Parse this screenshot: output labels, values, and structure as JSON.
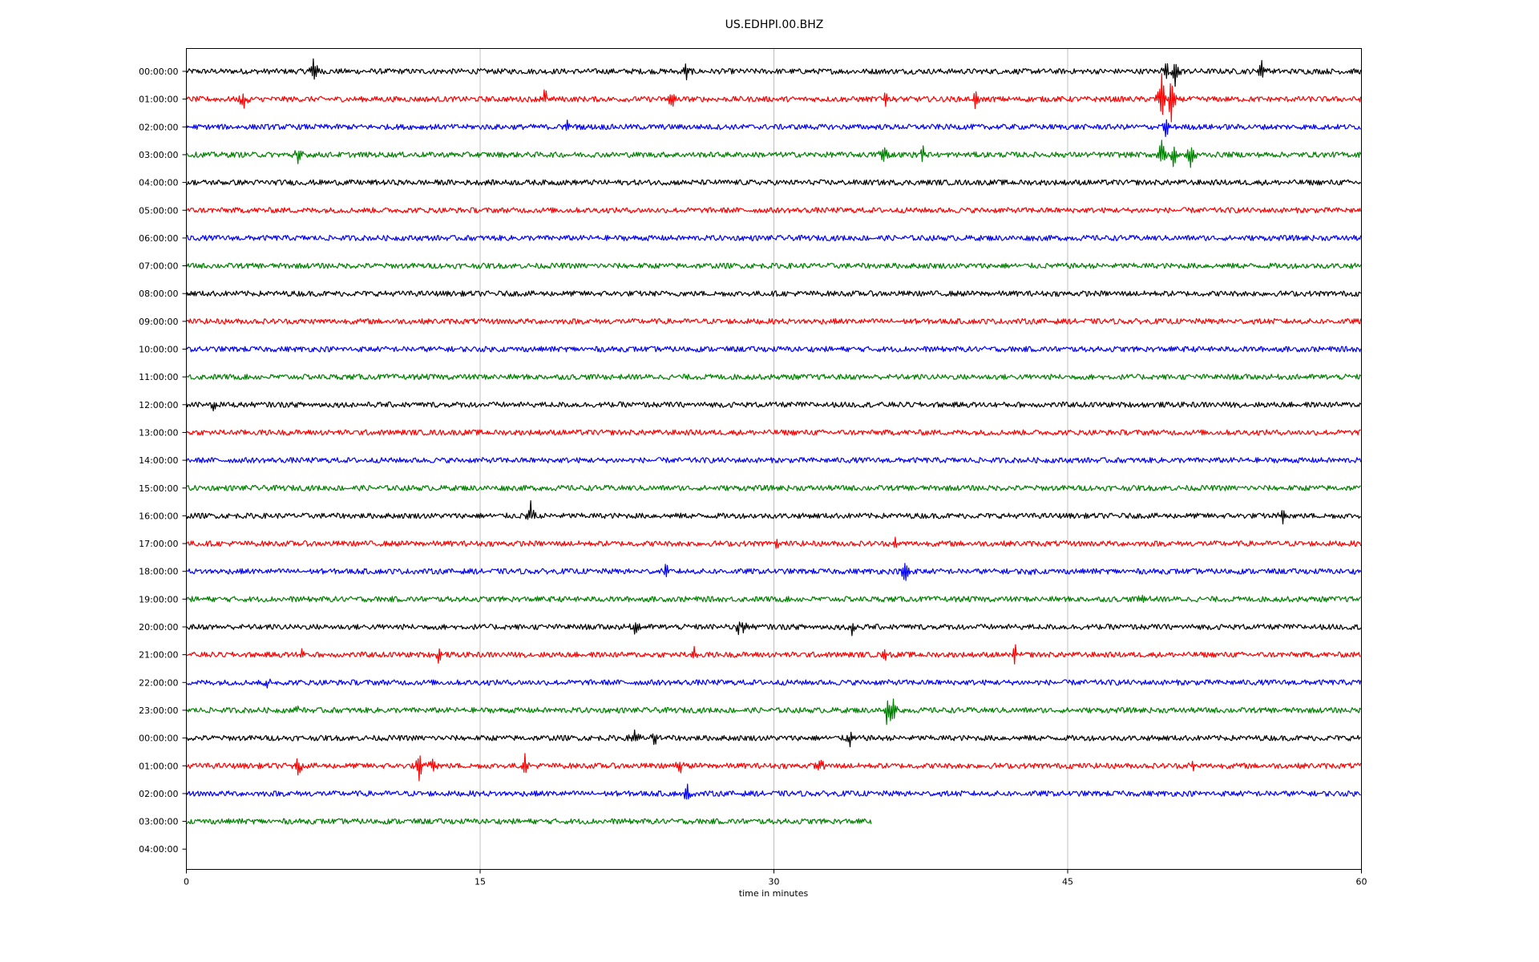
{
  "chart_data": {
    "type": "line",
    "title": "US.EDHPI.00.BHZ",
    "xlabel": "time in minutes",
    "ylabel": "",
    "xlim": [
      0,
      60
    ],
    "x_ticks": [
      0,
      15,
      30,
      45,
      60
    ],
    "x_tick_labels": [
      "0",
      "15",
      "30",
      "45",
      "60"
    ],
    "grid": "vertical lines at x tick positions",
    "color_cycle": [
      "#000000",
      "#ff0000",
      "#0000ff",
      "#008000"
    ],
    "row_labels": [
      "00:00:00",
      "01:00:00",
      "02:00:00",
      "03:00:00",
      "04:00:00",
      "05:00:00",
      "06:00:00",
      "07:00:00",
      "08:00:00",
      "09:00:00",
      "10:00:00",
      "11:00:00",
      "12:00:00",
      "13:00:00",
      "14:00:00",
      "15:00:00",
      "16:00:00",
      "17:00:00",
      "18:00:00",
      "19:00:00",
      "20:00:00",
      "21:00:00",
      "22:00:00",
      "23:00:00",
      "00:00:00",
      "01:00:00",
      "02:00:00",
      "03:00:00",
      "04:00:00"
    ],
    "trace_end_minutes": [
      60,
      60,
      60,
      60,
      60,
      60,
      60,
      60,
      60,
      60,
      60,
      60,
      60,
      60,
      60,
      60,
      60,
      60,
      60,
      60,
      60,
      60,
      60,
      60,
      60,
      60,
      60,
      35,
      0
    ],
    "noise_amplitude": 0.12,
    "spikes": [
      {
        "row": 0,
        "minute": 6.5,
        "amp": 0.8
      },
      {
        "row": 0,
        "minute": 25.5,
        "amp": -0.5
      },
      {
        "row": 0,
        "minute": 50.0,
        "amp": 0.6
      },
      {
        "row": 0,
        "minute": 50.5,
        "amp": -0.9
      },
      {
        "row": 0,
        "minute": 54.9,
        "amp": 0.75
      },
      {
        "row": 1,
        "minute": 2.9,
        "amp": -0.5
      },
      {
        "row": 1,
        "minute": 18.3,
        "amp": 0.5
      },
      {
        "row": 1,
        "minute": 24.8,
        "amp": -0.5
      },
      {
        "row": 1,
        "minute": 35.7,
        "amp": 0.45
      },
      {
        "row": 1,
        "minute": 40.3,
        "amp": -0.6
      },
      {
        "row": 1,
        "minute": 49.8,
        "amp": 1.8
      },
      {
        "row": 1,
        "minute": 50.3,
        "amp": -1.5
      },
      {
        "row": 2,
        "minute": 19.5,
        "amp": 0.35
      },
      {
        "row": 2,
        "minute": 50.0,
        "amp": -0.6
      },
      {
        "row": 3,
        "minute": 5.7,
        "amp": -0.5
      },
      {
        "row": 3,
        "minute": 35.6,
        "amp": 0.6
      },
      {
        "row": 3,
        "minute": 37.6,
        "amp": 0.4
      },
      {
        "row": 3,
        "minute": 49.8,
        "amp": 0.9
      },
      {
        "row": 3,
        "minute": 50.4,
        "amp": -0.8
      },
      {
        "row": 3,
        "minute": 51.3,
        "amp": -0.8
      },
      {
        "row": 12,
        "minute": 1.4,
        "amp": -0.35
      },
      {
        "row": 16,
        "minute": 17.6,
        "amp": 1.0
      },
      {
        "row": 16,
        "minute": 17.7,
        "amp": -0.9
      },
      {
        "row": 16,
        "minute": 56.0,
        "amp": -0.45
      },
      {
        "row": 17,
        "minute": 30.1,
        "amp": 0.35
      },
      {
        "row": 17,
        "minute": 36.2,
        "amp": -0.35
      },
      {
        "row": 18,
        "minute": 24.5,
        "amp": 0.45
      },
      {
        "row": 18,
        "minute": 36.7,
        "amp": -0.75
      },
      {
        "row": 18,
        "minute": 43.1,
        "amp": -0.35
      },
      {
        "row": 19,
        "minute": 48.9,
        "amp": 0.35
      },
      {
        "row": 20,
        "minute": 28.4,
        "amp": 0.45
      },
      {
        "row": 20,
        "minute": 28.2,
        "amp": -0.5
      },
      {
        "row": 20,
        "minute": 34.0,
        "amp": -0.4
      },
      {
        "row": 20,
        "minute": 22.9,
        "amp": -0.35
      },
      {
        "row": 21,
        "minute": 5.9,
        "amp": 0.3
      },
      {
        "row": 21,
        "minute": 12.9,
        "amp": -0.5
      },
      {
        "row": 21,
        "minute": 25.9,
        "amp": 0.45
      },
      {
        "row": 21,
        "minute": 42.3,
        "amp": 0.55
      },
      {
        "row": 21,
        "minute": 35.7,
        "amp": 0.3
      },
      {
        "row": 22,
        "minute": 4.1,
        "amp": -0.3
      },
      {
        "row": 23,
        "minute": 5.6,
        "amp": 0.3
      },
      {
        "row": 23,
        "minute": 35.8,
        "amp": -0.8
      },
      {
        "row": 23,
        "minute": 36.1,
        "amp": -0.7
      },
      {
        "row": 24,
        "minute": 22.9,
        "amp": 0.55
      },
      {
        "row": 24,
        "minute": 23.9,
        "amp": -0.4
      },
      {
        "row": 24,
        "minute": 33.9,
        "amp": -0.35
      },
      {
        "row": 25,
        "minute": 5.7,
        "amp": -0.6
      },
      {
        "row": 25,
        "minute": 11.9,
        "amp": -0.8
      },
      {
        "row": 25,
        "minute": 12.6,
        "amp": 0.5
      },
      {
        "row": 25,
        "minute": 17.3,
        "amp": 0.5
      },
      {
        "row": 25,
        "minute": 32.4,
        "amp": 0.4
      },
      {
        "row": 25,
        "minute": 51.4,
        "amp": 0.3
      },
      {
        "row": 25,
        "minute": 25.2,
        "amp": -0.4
      },
      {
        "row": 26,
        "minute": 25.6,
        "amp": -0.55
      }
    ]
  }
}
